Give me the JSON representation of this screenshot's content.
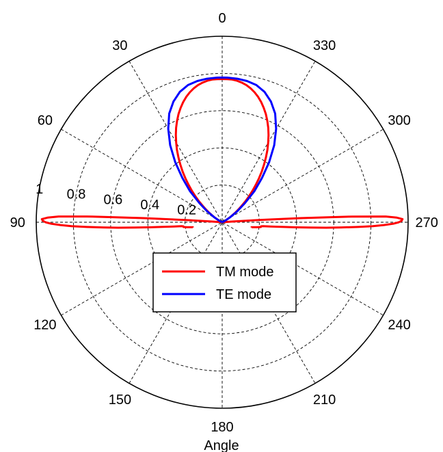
{
  "chart_data": {
    "type": "polar",
    "title": "",
    "xlabel": "Angle",
    "ylabel": "",
    "angle_direction": "counterclockwise",
    "zero_location": "top",
    "angle_ticks": [
      0,
      30,
      60,
      90,
      120,
      150,
      180,
      210,
      240,
      270,
      300,
      330
    ],
    "angle_tick_labels": [
      "0",
      "30",
      "60",
      "90",
      "120",
      "150",
      "180",
      "210",
      "240",
      "270",
      "300",
      "330"
    ],
    "radial_ticks": [
      0.2,
      0.4,
      0.6,
      0.8,
      1
    ],
    "radial_tick_labels": [
      "0.2",
      "0.4",
      "0.6",
      "0.8",
      "1"
    ],
    "rlim": [
      0,
      1
    ],
    "grid": true,
    "legend_position": "bottom-center",
    "series": [
      {
        "name": "TM mode",
        "color": "#ff0000",
        "lobes": [
          {
            "angle_deg": [
              0,
              2,
              4,
              6,
              8,
              10,
              12,
              14,
              16,
              18,
              20,
              22,
              24,
              26,
              28,
              30,
              32,
              34,
              36,
              38,
              40,
              42,
              44,
              46,
              48,
              50,
              52,
              54,
              56,
              58,
              60,
              62,
              64,
              66,
              68,
              70
            ],
            "r": [
              0.77,
              0.77,
              0.769,
              0.765,
              0.758,
              0.749,
              0.736,
              0.72,
              0.701,
              0.679,
              0.654,
              0.627,
              0.597,
              0.565,
              0.531,
              0.495,
              0.459,
              0.421,
              0.383,
              0.345,
              0.307,
              0.27,
              0.234,
              0.2,
              0.167,
              0.137,
              0.109,
              0.085,
              0.063,
              0.045,
              0.03,
              0.018,
              0.009,
              0.004,
              0.001,
              0
            ]
          },
          {
            "angle_deg": [
              0,
              -2,
              -4,
              -6,
              -8,
              -10,
              -12,
              -14,
              -16,
              -18,
              -20,
              -22,
              -24,
              -26,
              -28,
              -30,
              -32,
              -34,
              -36,
              -38,
              -40,
              -42,
              -44,
              -46,
              -48,
              -50,
              -52,
              -54,
              -56,
              -58,
              -60,
              -62,
              -64,
              -66,
              -68,
              -70
            ],
            "r": [
              0.77,
              0.77,
              0.769,
              0.765,
              0.758,
              0.749,
              0.736,
              0.72,
              0.701,
              0.679,
              0.654,
              0.627,
              0.597,
              0.565,
              0.531,
              0.495,
              0.459,
              0.421,
              0.383,
              0.345,
              0.307,
              0.27,
              0.234,
              0.2,
              0.167,
              0.137,
              0.109,
              0.085,
              0.063,
              0.045,
              0.03,
              0.018,
              0.009,
              0.004,
              0.001,
              0
            ]
          },
          {
            "angle_deg": [
              85,
              85.5,
              86,
              86.5,
              87,
              87.5,
              88,
              88.5,
              89,
              89.5,
              90,
              90.5,
              91,
              91.5,
              92,
              92.5,
              93,
              93.5,
              94,
              94.5,
              95,
              95.5,
              96,
              96.5,
              97,
              97.5,
              98,
              98.5,
              99,
              99.5,
              100
            ],
            "r": [
              0.001,
              0.02,
              0.06,
              0.18,
              0.42,
              0.7,
              0.88,
              0.94,
              0.97,
              0.965,
              0.95,
              0.92,
              0.87,
              0.81,
              0.73,
              0.64,
              0.56,
              0.47,
              0.39,
              0.32,
              0.26,
              0.22,
              0.21,
              0.21,
              0.21,
              0.2,
              0.19,
              0.18,
              0.17,
              0.16,
              0.16
            ]
          },
          {
            "angle_deg": [
              275,
              274.5,
              274,
              273.5,
              273,
              272.5,
              272,
              271.5,
              271,
              270.5,
              270,
              269.5,
              269,
              268.5,
              268,
              267.5,
              267,
              266.5,
              266,
              265.5,
              265,
              264.5,
              264,
              263.5,
              263,
              262.5,
              262,
              261.5,
              261,
              260.5,
              260
            ],
            "r": [
              0.001,
              0.02,
              0.06,
              0.18,
              0.42,
              0.7,
              0.88,
              0.94,
              0.97,
              0.965,
              0.95,
              0.92,
              0.87,
              0.81,
              0.73,
              0.64,
              0.56,
              0.47,
              0.39,
              0.32,
              0.26,
              0.22,
              0.21,
              0.21,
              0.21,
              0.2,
              0.19,
              0.18,
              0.17,
              0.16,
              0.16
            ]
          }
        ]
      },
      {
        "name": "TE mode",
        "color": "#0000ff",
        "lobes": [
          {
            "angle_deg": [
              -70,
              -66,
              -62,
              -58,
              -54,
              -50,
              -46,
              -42,
              -38,
              -34,
              -30,
              -26,
              -22,
              -18,
              -14,
              -10,
              -6,
              -2,
              0,
              2,
              6,
              10,
              14,
              18,
              22,
              26,
              30,
              34,
              38,
              42,
              46,
              50,
              54,
              58,
              62,
              66,
              70
            ],
            "r": [
              0,
              0.005,
              0.02,
              0.05,
              0.1,
              0.16,
              0.24,
              0.32,
              0.41,
              0.5,
              0.58,
              0.65,
              0.7,
              0.737,
              0.76,
              0.771,
              0.776,
              0.778,
              0.778,
              0.778,
              0.776,
              0.771,
              0.76,
              0.737,
              0.7,
              0.65,
              0.58,
              0.5,
              0.41,
              0.32,
              0.24,
              0.16,
              0.1,
              0.05,
              0.02,
              0.005,
              0
            ]
          }
        ]
      }
    ]
  }
}
